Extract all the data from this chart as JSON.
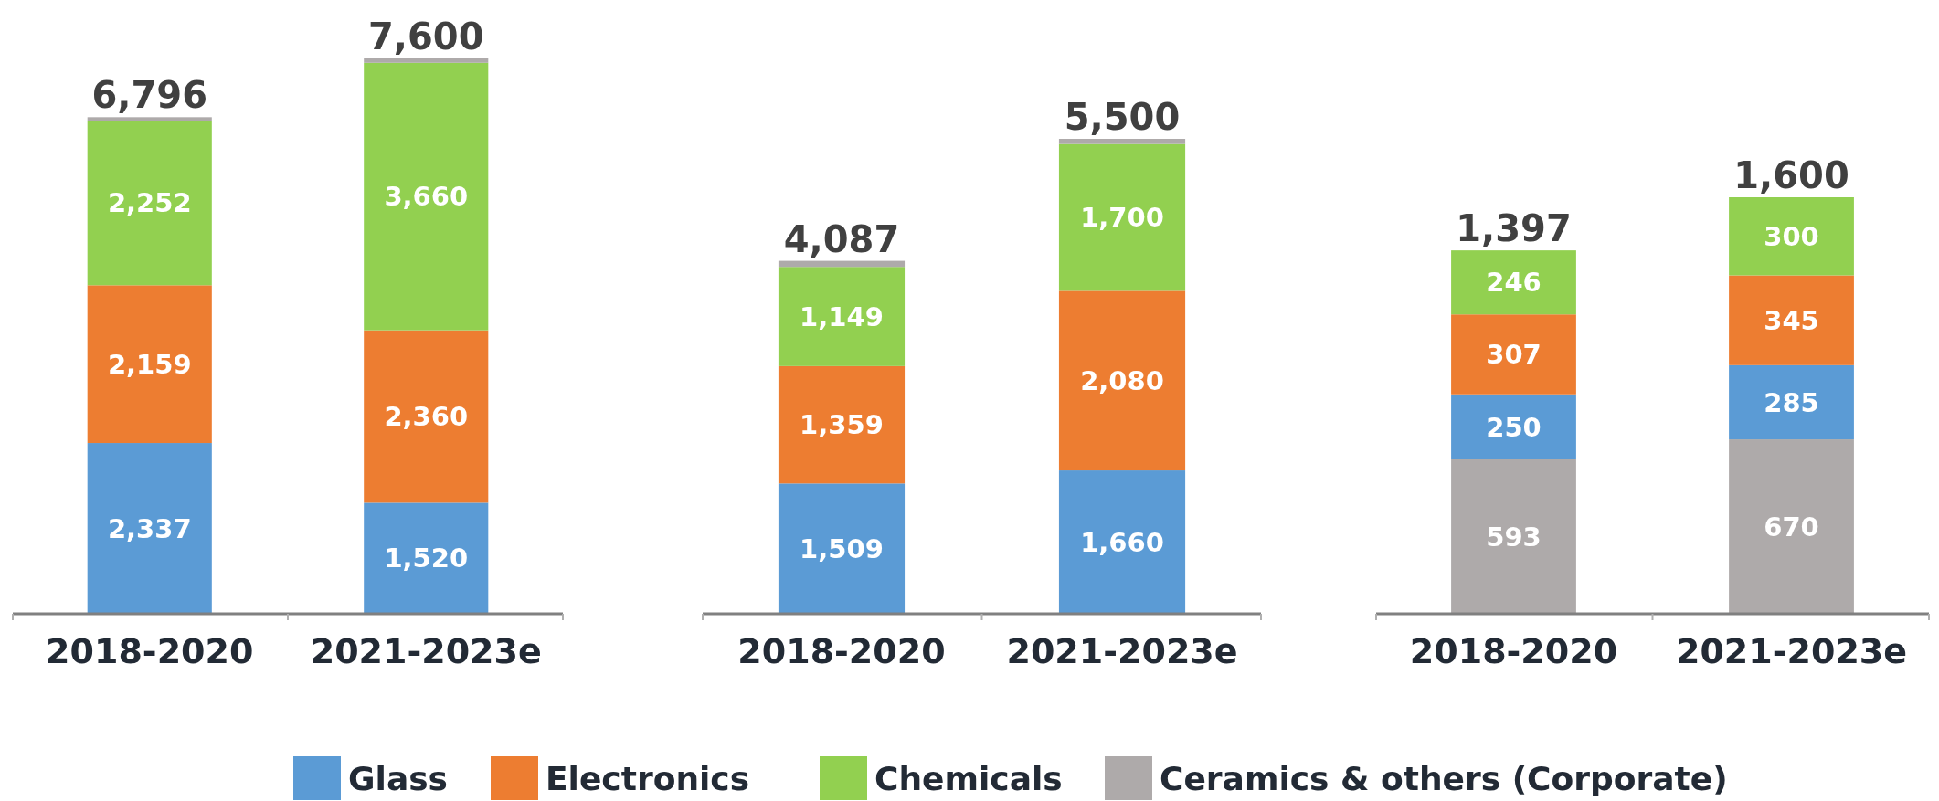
{
  "chart_data": [
    {
      "type": "bar",
      "stacked": true,
      "categories": [
        "2018-2020",
        "2021-2023e"
      ],
      "totals": [
        "6,796",
        "7,600"
      ],
      "series": [
        {
          "color": "#5b9bd5",
          "values": [
            2337,
            1520
          ],
          "value_labels": [
            "2,337",
            "1,520"
          ]
        },
        {
          "color": "#ed7d31",
          "values": [
            2159,
            2360
          ],
          "value_labels": [
            "2,159",
            "2,360"
          ]
        },
        {
          "color": "#92d050",
          "values": [
            2252,
            3660
          ],
          "value_labels": [
            "2,252",
            "3,660"
          ]
        },
        {
          "color": "#aeaaaa",
          "values": [
            48,
            60
          ],
          "value_labels": [
            null,
            null
          ]
        }
      ]
    },
    {
      "type": "bar",
      "stacked": true,
      "categories": [
        "2018-2020",
        "2021-2023e"
      ],
      "totals": [
        "4,087",
        "5,500"
      ],
      "legend": "bottom",
      "series": [
        {
          "name": "Glass",
          "color": "#5b9bd5",
          "values": [
            1509,
            1660
          ],
          "value_labels": [
            "1,509",
            "1,660"
          ]
        },
        {
          "name": "Electronics",
          "color": "#ed7d31",
          "values": [
            1359,
            2080
          ],
          "value_labels": [
            "1,359",
            "2,080"
          ]
        },
        {
          "name": "Chemicals",
          "color": "#92d050",
          "values": [
            1149,
            1700
          ],
          "value_labels": [
            "1,149",
            "1,700"
          ]
        },
        {
          "name": "Ceramics & others (Corporate)",
          "color": "#aeaaaa",
          "values": [
            70,
            60
          ],
          "value_labels": [
            null,
            null
          ]
        }
      ]
    },
    {
      "type": "bar",
      "stacked": true,
      "categories": [
        "2018-2020",
        "2021-2023e"
      ],
      "totals": [
        "1,397",
        "1,600"
      ],
      "series": [
        {
          "color": "#aeaaaa",
          "values": [
            593,
            670
          ],
          "value_labels": [
            "593",
            "670"
          ]
        },
        {
          "color": "#5b9bd5",
          "values": [
            250,
            285
          ],
          "value_labels": [
            "250",
            "285"
          ]
        },
        {
          "color": "#ed7d31",
          "values": [
            307,
            345
          ],
          "value_labels": [
            "307",
            "345"
          ]
        },
        {
          "color": "#92d050",
          "values": [
            246,
            300
          ],
          "value_labels": [
            "246",
            "300"
          ]
        }
      ]
    }
  ]
}
